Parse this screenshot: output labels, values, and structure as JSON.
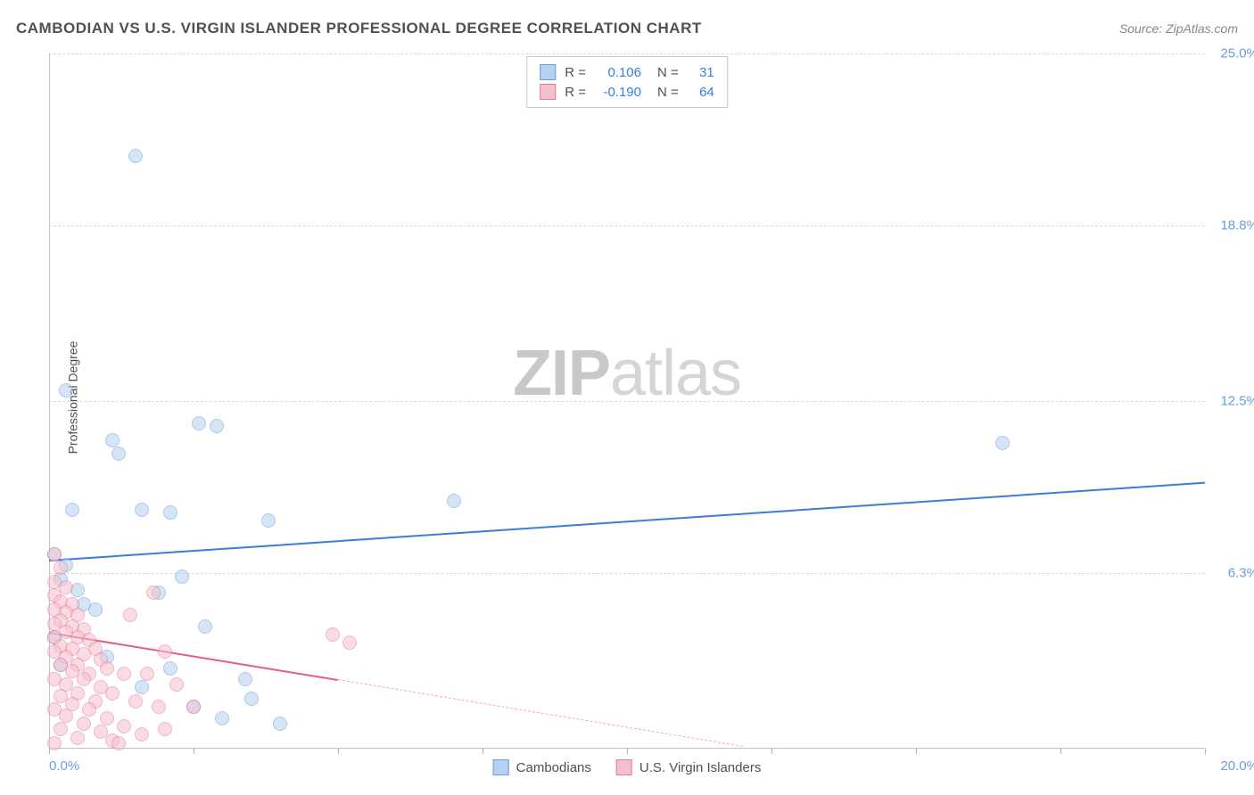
{
  "header": {
    "title": "CAMBODIAN VS U.S. VIRGIN ISLANDER PROFESSIONAL DEGREE CORRELATION CHART",
    "source_prefix": "Source: ",
    "source": "ZipAtlas.com"
  },
  "y_axis": {
    "label": "Professional Degree"
  },
  "watermark": {
    "zip": "ZIP",
    "atlas": "atlas"
  },
  "legend_top": {
    "rows": [
      {
        "swatch_fill": "#b6d0f0",
        "swatch_border": "#6a9ce0",
        "r_label": "R =",
        "r_value": "0.106",
        "n_label": "N =",
        "n_value": "31"
      },
      {
        "swatch_fill": "#f5c0cd",
        "swatch_border": "#e67a9a",
        "r_label": "R =",
        "r_value": "-0.190",
        "n_label": "N =",
        "n_value": "64"
      }
    ]
  },
  "legend_bottom": {
    "items": [
      {
        "swatch_fill": "#b6d0f0",
        "swatch_border": "#6a9ce0",
        "label": "Cambodians"
      },
      {
        "swatch_fill": "#f5c0cd",
        "swatch_border": "#e67a9a",
        "label": "U.S. Virgin Islanders"
      }
    ]
  },
  "chart": {
    "type": "scatter",
    "xlim": [
      0,
      20
    ],
    "ylim": [
      0,
      25
    ],
    "x_tick_positions": [
      0,
      2.5,
      5,
      7.5,
      10,
      12.5,
      15,
      17.5,
      20
    ],
    "y_ticks": [
      6.3,
      12.5,
      18.8,
      25.0
    ],
    "y_tick_labels": [
      "6.3%",
      "12.5%",
      "18.8%",
      "25.0%"
    ],
    "x_min_label": "0.0%",
    "x_max_label": "20.0%",
    "background_color": "#ffffff",
    "grid_color": "#d8d8d8",
    "axis_color": "#c0c0c0",
    "tick_label_color": "#6a9ce0",
    "marker_radius": 8,
    "marker_opacity": 0.55,
    "series": [
      {
        "name": "Cambodians",
        "fill": "#b6d0f0",
        "stroke": "#6a9ce0",
        "trend": {
          "x1": 0,
          "y1": 6.8,
          "x2": 20,
          "y2": 9.6,
          "color": "#3b7dd8",
          "width": 2.5,
          "dash": false
        },
        "points": [
          [
            1.5,
            21.3
          ],
          [
            0.3,
            12.9
          ],
          [
            1.1,
            11.1
          ],
          [
            2.6,
            11.7
          ],
          [
            2.9,
            11.6
          ],
          [
            1.2,
            10.6
          ],
          [
            16.5,
            11.0
          ],
          [
            0.4,
            8.6
          ],
          [
            1.6,
            8.6
          ],
          [
            2.1,
            8.5
          ],
          [
            3.8,
            8.2
          ],
          [
            7.0,
            8.9
          ],
          [
            0.1,
            7.0
          ],
          [
            0.3,
            6.6
          ],
          [
            0.2,
            6.1
          ],
          [
            0.5,
            5.7
          ],
          [
            0.6,
            5.2
          ],
          [
            1.9,
            5.6
          ],
          [
            2.7,
            4.4
          ],
          [
            0.1,
            4.0
          ],
          [
            2.1,
            2.9
          ],
          [
            1.6,
            2.2
          ],
          [
            2.5,
            1.5
          ],
          [
            3.0,
            1.1
          ],
          [
            3.5,
            1.8
          ],
          [
            3.4,
            2.5
          ],
          [
            4.0,
            0.9
          ],
          [
            1.0,
            3.3
          ],
          [
            0.2,
            3.0
          ],
          [
            2.3,
            6.2
          ],
          [
            0.8,
            5.0
          ]
        ]
      },
      {
        "name": "U.S. Virgin Islanders",
        "fill": "#f5c0cd",
        "stroke": "#e67a9a",
        "trend_solid": {
          "x1": 0,
          "y1": 4.2,
          "x2": 5.0,
          "y2": 2.5,
          "color": "#e65b85",
          "width": 2.5,
          "dash": false
        },
        "trend_dashed": {
          "x1": 5.0,
          "y1": 2.5,
          "x2": 12.0,
          "y2": 0.1,
          "color": "#f0a8bc",
          "width": 1.5,
          "dash": true
        },
        "points": [
          [
            0.1,
            7.0
          ],
          [
            0.2,
            6.5
          ],
          [
            0.1,
            6.0
          ],
          [
            0.3,
            5.8
          ],
          [
            0.1,
            5.5
          ],
          [
            0.2,
            5.3
          ],
          [
            0.4,
            5.2
          ],
          [
            0.1,
            5.0
          ],
          [
            0.3,
            4.9
          ],
          [
            0.5,
            4.8
          ],
          [
            0.2,
            4.6
          ],
          [
            0.1,
            4.5
          ],
          [
            0.4,
            4.4
          ],
          [
            0.6,
            4.3
          ],
          [
            0.3,
            4.2
          ],
          [
            0.1,
            4.0
          ],
          [
            0.5,
            4.0
          ],
          [
            0.7,
            3.9
          ],
          [
            0.2,
            3.7
          ],
          [
            0.4,
            3.6
          ],
          [
            0.8,
            3.6
          ],
          [
            0.1,
            3.5
          ],
          [
            0.6,
            3.4
          ],
          [
            0.3,
            3.3
          ],
          [
            0.9,
            3.2
          ],
          [
            0.2,
            3.0
          ],
          [
            0.5,
            3.0
          ],
          [
            1.0,
            2.9
          ],
          [
            0.4,
            2.8
          ],
          [
            0.7,
            2.7
          ],
          [
            1.3,
            2.7
          ],
          [
            0.1,
            2.5
          ],
          [
            0.6,
            2.5
          ],
          [
            0.3,
            2.3
          ],
          [
            0.9,
            2.2
          ],
          [
            1.7,
            2.7
          ],
          [
            0.5,
            2.0
          ],
          [
            0.2,
            1.9
          ],
          [
            1.1,
            2.0
          ],
          [
            2.2,
            2.3
          ],
          [
            0.8,
            1.7
          ],
          [
            0.4,
            1.6
          ],
          [
            1.5,
            1.7
          ],
          [
            0.1,
            1.4
          ],
          [
            0.7,
            1.4
          ],
          [
            1.9,
            1.5
          ],
          [
            0.3,
            1.2
          ],
          [
            1.0,
            1.1
          ],
          [
            2.5,
            1.5
          ],
          [
            0.6,
            0.9
          ],
          [
            1.3,
            0.8
          ],
          [
            0.2,
            0.7
          ],
          [
            0.9,
            0.6
          ],
          [
            1.6,
            0.5
          ],
          [
            0.5,
            0.4
          ],
          [
            1.1,
            0.3
          ],
          [
            4.9,
            4.1
          ],
          [
            5.2,
            3.8
          ],
          [
            1.8,
            5.6
          ],
          [
            1.4,
            4.8
          ],
          [
            2.0,
            3.5
          ],
          [
            2.0,
            0.7
          ],
          [
            1.2,
            0.2
          ],
          [
            0.1,
            0.2
          ]
        ]
      }
    ]
  }
}
